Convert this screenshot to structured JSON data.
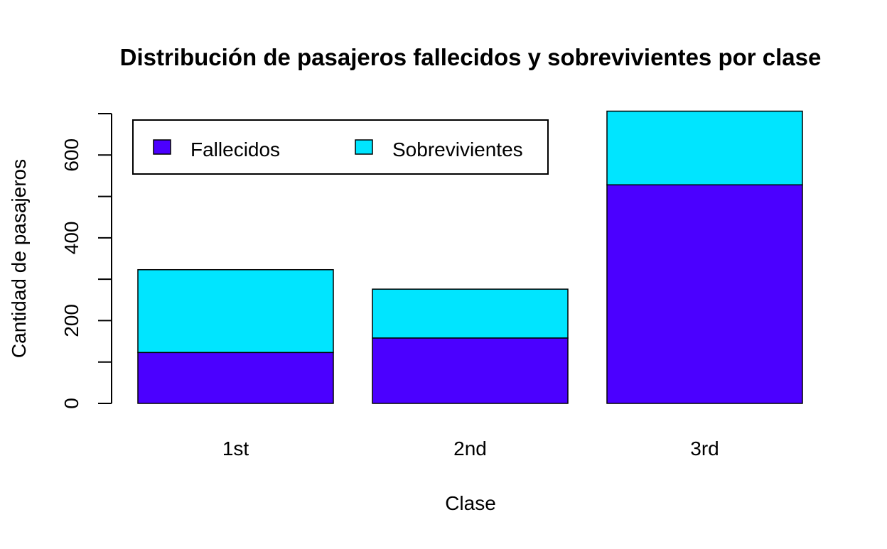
{
  "chart_data": {
    "type": "bar",
    "stacked": true,
    "title": "Distribución de pasajeros fallecidos y sobrevivientes por clase",
    "xlabel": "Clase",
    "ylabel": "Cantidad de pasajeros",
    "categories": [
      "1st",
      "2nd",
      "3rd"
    ],
    "series": [
      {
        "name": "Fallecidos",
        "color": "#4B00FF",
        "values": [
          123,
          158,
          528
        ]
      },
      {
        "name": "Sobrevivientes",
        "color": "#00E5FF",
        "values": [
          200,
          118,
          178
        ]
      }
    ],
    "ylim": [
      0,
      700
    ],
    "yticks": [
      0,
      200,
      400,
      600
    ],
    "grid": false,
    "legend_position": "top-left"
  }
}
